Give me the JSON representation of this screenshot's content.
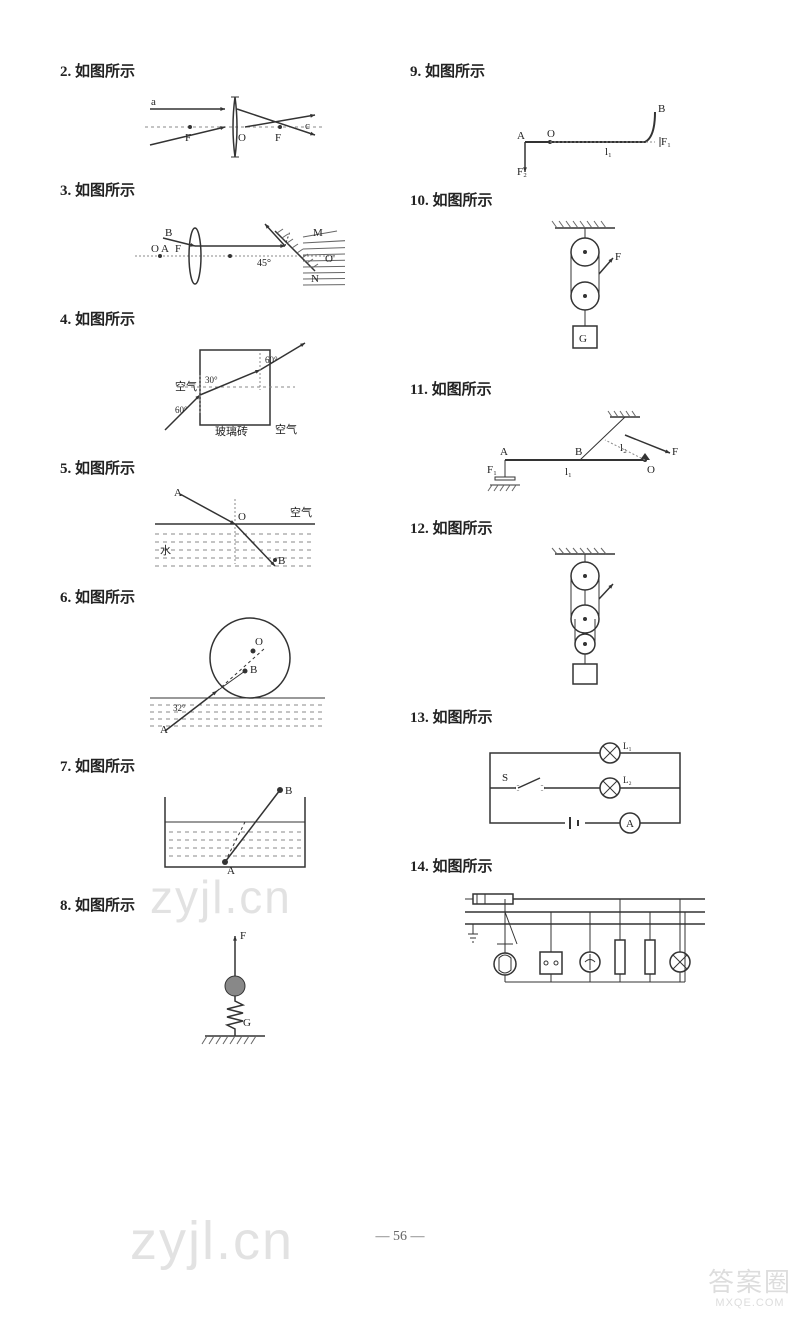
{
  "label_text": "如图所示",
  "page_number": "56",
  "watermark_text": "zyjl.cn",
  "corner_top": "答案圈",
  "corner_bottom": "MXQE.COM",
  "left_items": [
    {
      "num": "2.",
      "fig": "lens"
    },
    {
      "num": "3.",
      "fig": "lens_mirror"
    },
    {
      "num": "4.",
      "fig": "glass_block"
    },
    {
      "num": "5.",
      "fig": "water_refraction"
    },
    {
      "num": "6.",
      "fig": "fish_circle"
    },
    {
      "num": "7.",
      "fig": "tank_stick"
    },
    {
      "num": "8.",
      "fig": "spring_ball"
    }
  ],
  "right_items": [
    {
      "num": "9.",
      "fig": "lever1"
    },
    {
      "num": "10.",
      "fig": "pulley1"
    },
    {
      "num": "11.",
      "fig": "lever2"
    },
    {
      "num": "12.",
      "fig": "pulley2"
    },
    {
      "num": "13.",
      "fig": "circuit"
    },
    {
      "num": "14.",
      "fig": "house_circuit"
    }
  ],
  "fig_labels": {
    "lens": {
      "a": "a",
      "c": "c",
      "F": "F",
      "O": "O"
    },
    "lens_mirror": {
      "B": "B",
      "O": "O",
      "A": "A",
      "F": "F",
      "M": "M",
      "N": "N",
      "Oprime": "O'",
      "angle": "45°"
    },
    "glass_block": {
      "air": "空气",
      "glass": "玻璃砖",
      "a30": "30°",
      "a60": "60°"
    },
    "water_refraction": {
      "A": "A",
      "O": "O",
      "B": "B",
      "air": "空气",
      "water": "水"
    },
    "fish_circle": {
      "A": "A",
      "O": "O",
      "B": "B",
      "angle": "32°"
    },
    "tank_stick": {
      "A": "A",
      "B": "B"
    },
    "spring_ball": {
      "F": "F",
      "G": "G"
    },
    "lever1": {
      "A": "A",
      "O": "O",
      "B": "B",
      "F1": "F₁",
      "F2": "F₂",
      "l1": "l₁"
    },
    "lever2": {
      "A": "A",
      "B": "B",
      "O": "O",
      "F": "F",
      "F1": "F₁",
      "l1": "l₁",
      "l2": "l₂"
    },
    "pulley1": {
      "F": "F",
      "G": "G"
    },
    "circuit": {
      "S": "S",
      "L1": "L₁",
      "L2": "L₂",
      "A": "A"
    }
  },
  "colors": {
    "stroke": "#333333",
    "light_stroke": "#888888",
    "hatch": "#666666",
    "text": "#222222"
  }
}
